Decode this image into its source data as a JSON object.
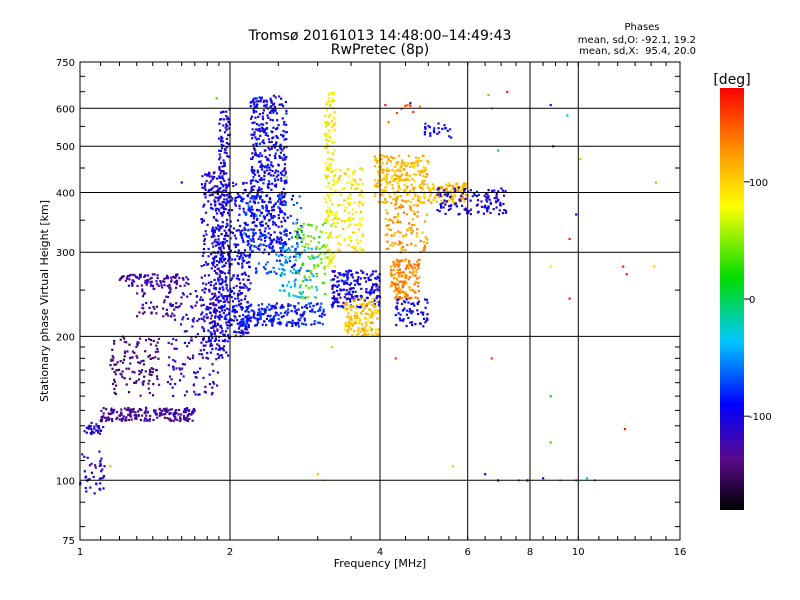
{
  "chart_data": {
    "type": "scatter",
    "title": "Tromsø 20161013 14:48:00–14:49:43",
    "subtitle": "RwPretec (8p)",
    "xlabel": "Frequency [MHz]",
    "ylabel": "Stationary phase Virtual Height [km]",
    "x_scale": "log",
    "y_scale": "log",
    "xlim": [
      1,
      16
    ],
    "ylim": [
      75,
      750
    ],
    "x_ticks": [
      1,
      2,
      4,
      6,
      8,
      10,
      16
    ],
    "y_ticks": [
      75,
      100,
      200,
      300,
      400,
      500,
      600,
      750
    ],
    "grid": true,
    "phase_stats": {
      "header": "Phases",
      "line1": "mean, sd,O: -92.1, 19.2",
      "line2": "mean, sd,X:  95.4, 20.0"
    },
    "colorbar": {
      "label": "[deg]",
      "ticks": [
        100,
        0,
        -100
      ],
      "range": [
        -180,
        180
      ]
    },
    "clusters": [
      {
        "x": [
          1.0,
          1.12
        ],
        "y": [
          92,
          115
        ],
        "phase": -110,
        "n": 40
      },
      {
        "x": [
          1.02,
          1.12
        ],
        "y": [
          125,
          132
        ],
        "phase": -110,
        "n": 30
      },
      {
        "x": [
          1.1,
          1.7
        ],
        "y": [
          133,
          142
        ],
        "phase": -130,
        "n": 200
      },
      {
        "x": [
          1.15,
          1.45
        ],
        "y": [
          150,
          200
        ],
        "phase": -140,
        "n": 120
      },
      {
        "x": [
          1.2,
          1.65
        ],
        "y": [
          255,
          270
        ],
        "phase": -125,
        "n": 100
      },
      {
        "x": [
          1.3,
          1.6
        ],
        "y": [
          220,
          255
        ],
        "phase": -130,
        "n": 50
      },
      {
        "x": [
          1.5,
          1.9
        ],
        "y": [
          150,
          250
        ],
        "phase": -115,
        "n": 150
      },
      {
        "x": [
          1.75,
          2.0
        ],
        "y": [
          180,
          450
        ],
        "phase": -105,
        "n": 320
      },
      {
        "x": [
          1.85,
          2.2
        ],
        "y": [
          200,
          420
        ],
        "phase": -100,
        "n": 400
      },
      {
        "x": [
          1.9,
          2.0
        ],
        "y": [
          450,
          600
        ],
        "phase": -100,
        "n": 60
      },
      {
        "x": [
          2.2,
          2.6
        ],
        "y": [
          300,
          640
        ],
        "phase": -98,
        "n": 500
      },
      {
        "x": [
          2.1,
          2.8
        ],
        "y": [
          270,
          400
        ],
        "phase": -75,
        "n": 150
      },
      {
        "x": [
          2.1,
          3.1
        ],
        "y": [
          210,
          235
        ],
        "phase": -85,
        "n": 200
      },
      {
        "x": [
          2.5,
          3.0
        ],
        "y": [
          240,
          310
        ],
        "phase": -40,
        "n": 80
      },
      {
        "x": [
          2.7,
          3.2
        ],
        "y": [
          240,
          350
        ],
        "phase": 40,
        "n": 80
      },
      {
        "x": [
          3.1,
          3.25
        ],
        "y": [
          280,
          650
        ],
        "phase": 80,
        "n": 150
      },
      {
        "x": [
          3.25,
          3.7
        ],
        "y": [
          300,
          450
        ],
        "phase": 90,
        "n": 120
      },
      {
        "x": [
          3.2,
          4.0
        ],
        "y": [
          230,
          275
        ],
        "phase": -100,
        "n": 200
      },
      {
        "x": [
          3.4,
          4.0
        ],
        "y": [
          200,
          240
        ],
        "phase": 105,
        "n": 150
      },
      {
        "x": [
          3.9,
          5.0
        ],
        "y": [
          380,
          480
        ],
        "phase": 110,
        "n": 250
      },
      {
        "x": [
          4.1,
          5.0
        ],
        "y": [
          300,
          380
        ],
        "phase": 120,
        "n": 100
      },
      {
        "x": [
          4.2,
          4.8
        ],
        "y": [
          240,
          290
        ],
        "phase": 130,
        "n": 150
      },
      {
        "x": [
          4.3,
          5.0
        ],
        "y": [
          210,
          240
        ],
        "phase": -100,
        "n": 60
      },
      {
        "x": [
          5.0,
          6.0
        ],
        "y": [
          380,
          420
        ],
        "phase": 115,
        "n": 100
      },
      {
        "x": [
          5.2,
          7.2
        ],
        "y": [
          360,
          410
        ],
        "phase": -100,
        "n": 120
      },
      {
        "x": [
          4.9,
          5.6
        ],
        "y": [
          520,
          560
        ],
        "phase": -95,
        "n": 25
      },
      {
        "x": [
          4.0,
          5.2
        ],
        "y": [
          560,
          620
        ],
        "phase": 150,
        "n": 8
      }
    ],
    "stray_points": [
      {
        "x": 1.88,
        "y": 630,
        "phase": 30
      },
      {
        "x": 1.6,
        "y": 420,
        "phase": -100
      },
      {
        "x": 1.15,
        "y": 107,
        "phase": 110
      },
      {
        "x": 3.0,
        "y": 103,
        "phase": 110
      },
      {
        "x": 3.1,
        "y": 100,
        "phase": 90
      },
      {
        "x": 4.3,
        "y": 180,
        "phase": 160
      },
      {
        "x": 5.6,
        "y": 107,
        "phase": 110
      },
      {
        "x": 6.5,
        "y": 103,
        "phase": -100
      },
      {
        "x": 6.9,
        "y": 100,
        "phase": -100
      },
      {
        "x": 7.6,
        "y": 100,
        "phase": 0
      },
      {
        "x": 7.9,
        "y": 100,
        "phase": -150
      },
      {
        "x": 8.5,
        "y": 101,
        "phase": -100
      },
      {
        "x": 9.2,
        "y": 100,
        "phase": 40
      },
      {
        "x": 9.9,
        "y": 100,
        "phase": -30
      },
      {
        "x": 10.4,
        "y": 101,
        "phase": -20
      },
      {
        "x": 10.8,
        "y": 100,
        "phase": -10
      },
      {
        "x": 6.7,
        "y": 180,
        "phase": 160
      },
      {
        "x": 6.6,
        "y": 640,
        "phase": 130
      },
      {
        "x": 7.2,
        "y": 650,
        "phase": 170
      },
      {
        "x": 8.8,
        "y": 610,
        "phase": -100
      },
      {
        "x": 8.9,
        "y": 500,
        "phase": -120
      },
      {
        "x": 9.5,
        "y": 580,
        "phase": -20
      },
      {
        "x": 10.1,
        "y": 470,
        "phase": 110
      },
      {
        "x": 9.9,
        "y": 360,
        "phase": -100
      },
      {
        "x": 9.6,
        "y": 320,
        "phase": 170
      },
      {
        "x": 8.8,
        "y": 280,
        "phase": 90
      },
      {
        "x": 9.6,
        "y": 240,
        "phase": 170
      },
      {
        "x": 12.3,
        "y": 280,
        "phase": 170
      },
      {
        "x": 12.5,
        "y": 270,
        "phase": 170
      },
      {
        "x": 14.2,
        "y": 280,
        "phase": 110
      },
      {
        "x": 14.3,
        "y": 420,
        "phase": 40
      },
      {
        "x": 8.8,
        "y": 120,
        "phase": 30
      },
      {
        "x": 8.8,
        "y": 150,
        "phase": 20
      },
      {
        "x": 12.4,
        "y": 128,
        "phase": 170
      },
      {
        "x": 6.7,
        "y": 600,
        "phase": 130
      },
      {
        "x": 6.9,
        "y": 490,
        "phase": 0
      },
      {
        "x": 4.1,
        "y": 610,
        "phase": 170
      },
      {
        "x": 4.6,
        "y": 615,
        "phase": -100
      },
      {
        "x": 2.6,
        "y": 430,
        "phase": 60
      },
      {
        "x": 2.05,
        "y": 200,
        "phase": 40
      },
      {
        "x": 3.2,
        "y": 190,
        "phase": 50
      }
    ]
  }
}
